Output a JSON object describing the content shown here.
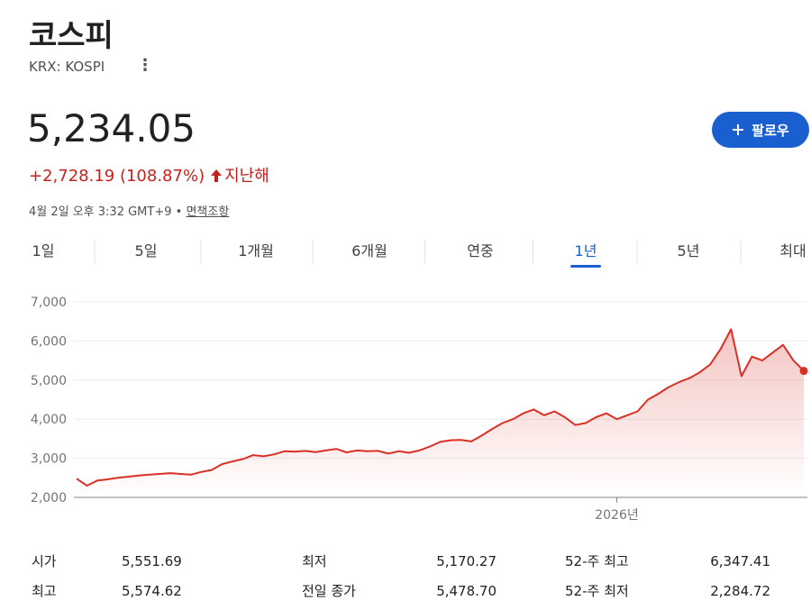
{
  "header": {
    "title": "코스피",
    "ticker": "KRX: KOSPI",
    "price": "5,234.05",
    "change": "+2,728.19 (108.87%)",
    "period": "지난해",
    "date": "4월 2일 오후 3:32 GMT+9",
    "separator": "•",
    "disclaimer": "면책조항",
    "follow": "팔로우"
  },
  "tabs": {
    "items": [
      "1일",
      "5일",
      "1개월",
      "6개월",
      "연중",
      "1년",
      "5년",
      "최대"
    ],
    "selected": 5
  },
  "chart_data": {
    "type": "line",
    "color": "#d93025",
    "categories": [
      null,
      null,
      null,
      null,
      null,
      null,
      null,
      null,
      null,
      null,
      null,
      null,
      null,
      null,
      null,
      null,
      null,
      null,
      null,
      null,
      null,
      null,
      null,
      null,
      null,
      null,
      null,
      null,
      null,
      null,
      null,
      null,
      null,
      null,
      null,
      null,
      null,
      null,
      null,
      null,
      null,
      null,
      null,
      null,
      null,
      null,
      null,
      null,
      null,
      null,
      null,
      null,
      "2026년",
      null,
      null,
      null,
      null,
      null,
      null,
      null,
      null,
      null,
      null,
      null,
      null,
      null,
      null,
      null,
      null,
      null,
      null
    ],
    "values": [
      2480,
      2300,
      2430,
      2460,
      2500,
      2530,
      2560,
      2580,
      2600,
      2620,
      2600,
      2580,
      2650,
      2700,
      2850,
      2920,
      2980,
      3080,
      3050,
      3100,
      3180,
      3170,
      3190,
      3160,
      3200,
      3240,
      3150,
      3200,
      3180,
      3190,
      3120,
      3180,
      3140,
      3200,
      3300,
      3420,
      3460,
      3470,
      3430,
      3580,
      3750,
      3900,
      4000,
      4150,
      4250,
      4100,
      4200,
      4050,
      3850,
      3900,
      4050,
      4150,
      4000,
      4100,
      4200,
      4500,
      4650,
      4820,
      4950,
      5050,
      5200,
      5400,
      5800,
      6300,
      5100,
      5600,
      5500,
      5700,
      5900,
      5500,
      5234.05
    ],
    "ylim": [
      2000,
      7000
    ],
    "yticks": [
      {
        "value": 2000,
        "label": "2,000"
      },
      {
        "value": 3000,
        "label": "3,000"
      },
      {
        "value": 4000,
        "label": "4,000"
      },
      {
        "value": 5000,
        "label": "5,000"
      },
      {
        "value": 6000,
        "label": "6,000"
      },
      {
        "value": 7000,
        "label": "7,000"
      }
    ],
    "grid": true
  },
  "stats": [
    [
      {
        "label": "시가",
        "value": "5,551.69"
      },
      {
        "label": "최저",
        "value": "5,170.27"
      },
      {
        "label": "52-주 최고",
        "value": "6,347.41"
      }
    ],
    [
      {
        "label": "최고",
        "value": "5,574.62"
      },
      {
        "label": "전일 종가",
        "value": "5,478.70"
      },
      {
        "label": "52-주 최저",
        "value": "2,284.72"
      }
    ]
  ]
}
